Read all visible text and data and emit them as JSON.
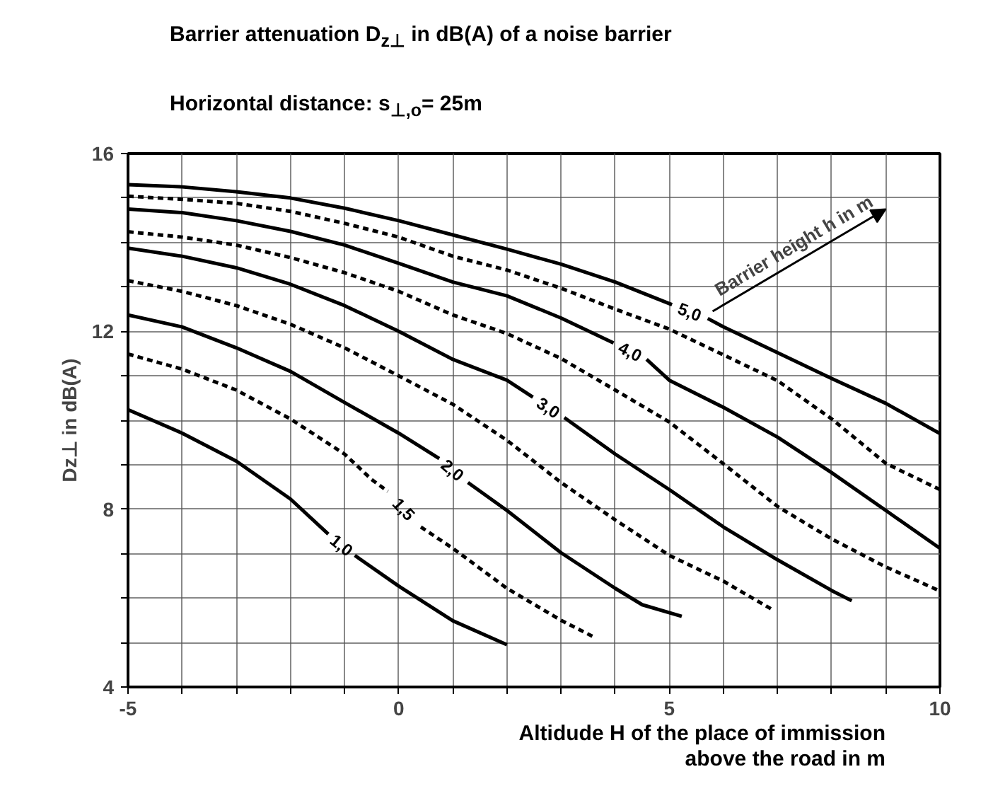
{
  "chart_data": {
    "type": "line",
    "title": "Barrier attenuation  D$_{z⊥}$ in dB(A) of a noise barrier",
    "subtitle": "Horizontal distance:  s$_{⊥,o}$= 25m",
    "xlabel": "Altidude H of the place of immission\nabove the road in m",
    "ylabel": "Dz⊥ in dB(A)",
    "annotations": [
      "Barrier height h in m"
    ],
    "xlim": [
      -5,
      10
    ],
    "ylim": [
      4,
      16
    ],
    "xticks": [
      -5,
      {
        "value": -4,
        "label": null
      },
      {
        "value": -3,
        "label": null
      },
      {
        "value": -2,
        "label": null
      },
      {
        "value": -1,
        "label": null
      },
      0,
      {
        "value": 1,
        "label": null
      },
      {
        "value": 2,
        "label": null
      },
      {
        "value": 3,
        "label": null
      },
      {
        "value": 4,
        "label": null
      },
      5,
      {
        "value": 6,
        "label": null
      },
      {
        "value": 7,
        "label": null
      },
      {
        "value": 8,
        "label": null
      },
      {
        "value": 9,
        "label": null
      },
      10
    ],
    "yticks": [
      4,
      {
        "value": 5,
        "label": null
      },
      {
        "value": 6,
        "label": null
      },
      {
        "value": 7,
        "label": null
      },
      8,
      {
        "value": 9,
        "label": null
      },
      {
        "value": 10,
        "label": null
      },
      {
        "value": 11,
        "label": null
      },
      12,
      {
        "value": 13,
        "label": null
      },
      {
        "value": 14,
        "label": null
      },
      {
        "value": 15,
        "label": null
      },
      16
    ],
    "grid": true,
    "marker": "none",
    "series": [
      {
        "name": "1,0",
        "color": "#000000",
        "line_style": "solid",
        "x": [
          -5,
          -4,
          -3,
          -2,
          -1.3,
          -1.05,
          -0.81,
          0,
          1,
          2
        ],
        "values": [
          10.24,
          9.71,
          9.08,
          8.23,
          7.44,
          null,
          6.96,
          6.27,
          5.49,
          4.95
        ]
      },
      {
        "name": "1,5",
        "color": "#000000",
        "line_style": "dashed",
        "x": [
          -5,
          -4,
          -3,
          -2,
          -1,
          -0.5,
          -0.2,
          0.1,
          0.41,
          1,
          2,
          3,
          3.63
        ],
        "values": [
          11.49,
          11.15,
          10.68,
          10.03,
          9.24,
          8.67,
          8.4,
          null,
          7.6,
          7.12,
          6.22,
          5.5,
          5.11
        ]
      },
      {
        "name": "2,0",
        "color": "#000000",
        "line_style": "solid",
        "x": [
          -5,
          -4,
          -3,
          -2,
          -1,
          0,
          0.75,
          1.0,
          1.28,
          2,
          3,
          4,
          4.5,
          5.23
        ],
        "values": [
          12.37,
          12.1,
          11.63,
          11.1,
          10.4,
          9.71,
          9.14,
          null,
          8.6,
          7.97,
          7.02,
          6.22,
          5.85,
          5.59
        ]
      },
      {
        "color": "#000000",
        "line_style": "dashed",
        "x": [
          -5,
          -4,
          -3,
          -2,
          -1,
          0,
          1,
          2,
          3,
          4,
          5,
          6,
          6.89
        ],
        "values": [
          13.14,
          12.9,
          12.58,
          12.16,
          11.63,
          11.0,
          10.36,
          9.55,
          8.6,
          7.76,
          6.96,
          6.38,
          5.75
        ]
      },
      {
        "name": "3,0",
        "color": "#000000",
        "line_style": "solid",
        "x": [
          -5,
          -4,
          -3,
          -2,
          -1,
          0,
          1,
          2,
          2.48,
          2.77,
          3.06,
          4,
          5,
          6,
          7,
          8,
          8.37
        ],
        "values": [
          13.87,
          13.69,
          13.43,
          13.06,
          12.58,
          12.0,
          11.37,
          10.9,
          10.52,
          null,
          10.06,
          9.24,
          8.44,
          7.6,
          6.86,
          6.17,
          5.94
        ]
      },
      {
        "color": "#000000",
        "line_style": "dashed",
        "x": [
          -5,
          -4,
          -3,
          -2,
          -1,
          0,
          1,
          2,
          3,
          4,
          5,
          6,
          7,
          8,
          9,
          10
        ],
        "values": [
          14.24,
          14.12,
          13.94,
          13.66,
          13.32,
          12.9,
          12.37,
          11.95,
          11.39,
          10.68,
          9.96,
          9.02,
          8.06,
          7.33,
          6.7,
          6.16
        ]
      },
      {
        "name": "4,0",
        "color": "#000000",
        "line_style": "solid",
        "x": [
          -5,
          -4,
          -3,
          -2,
          -1,
          0,
          1,
          2,
          3,
          3.97,
          4.28,
          4.58,
          5,
          6,
          7,
          8,
          9,
          10
        ],
        "values": [
          14.75,
          14.67,
          14.49,
          14.25,
          13.94,
          13.53,
          13.11,
          12.8,
          12.3,
          11.74,
          null,
          11.37,
          10.9,
          10.29,
          9.62,
          8.82,
          7.97,
          7.12
        ]
      },
      {
        "color": "#000000",
        "line_style": "dashed",
        "x": [
          -5,
          -4,
          -3,
          -2,
          -1,
          0,
          1,
          2,
          3,
          4,
          5,
          6,
          7,
          8,
          9,
          10
        ],
        "values": [
          15.04,
          14.97,
          14.88,
          14.7,
          14.43,
          14.12,
          13.69,
          13.38,
          12.97,
          12.5,
          12.05,
          11.47,
          10.89,
          10.03,
          9.03,
          8.44
        ]
      },
      {
        "name": "5,0",
        "color": "#000000",
        "line_style": "solid",
        "x": [
          -5,
          -4,
          -3,
          -2,
          -1,
          0,
          1,
          2,
          3,
          4,
          5.05,
          5.38,
          5.71,
          6,
          7,
          8,
          9,
          10
        ],
        "values": [
          15.3,
          15.25,
          15.14,
          15.0,
          14.77,
          14.49,
          14.17,
          13.85,
          13.51,
          13.11,
          12.6,
          null,
          12.29,
          12.1,
          11.52,
          10.94,
          10.38,
          9.7
        ]
      }
    ]
  }
}
